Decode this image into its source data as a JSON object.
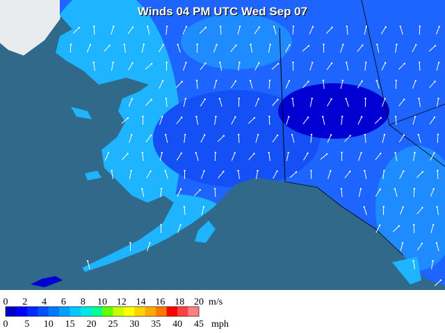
{
  "title": "Winds 04 PM UTC Wed Sep 07",
  "legend": {
    "colors": [
      "#0000c8",
      "#0000ff",
      "#0028ff",
      "#0050ff",
      "#0078ff",
      "#00a0ff",
      "#00c8ff",
      "#00e6e6",
      "#00ff96",
      "#64ff00",
      "#c8ff00",
      "#ffff00",
      "#ffd200",
      "#ffaa00",
      "#ff7800",
      "#ff0000",
      "#ff4040",
      "#ff8080"
    ],
    "ms": {
      "unit": "m/s",
      "ticks": [
        0,
        2,
        4,
        6,
        8,
        10,
        12,
        14,
        16,
        18,
        20
      ]
    },
    "mph": {
      "unit": "mph",
      "ticks": [
        0,
        5,
        10,
        15,
        20,
        25,
        30,
        35,
        40,
        45
      ]
    }
  }
}
